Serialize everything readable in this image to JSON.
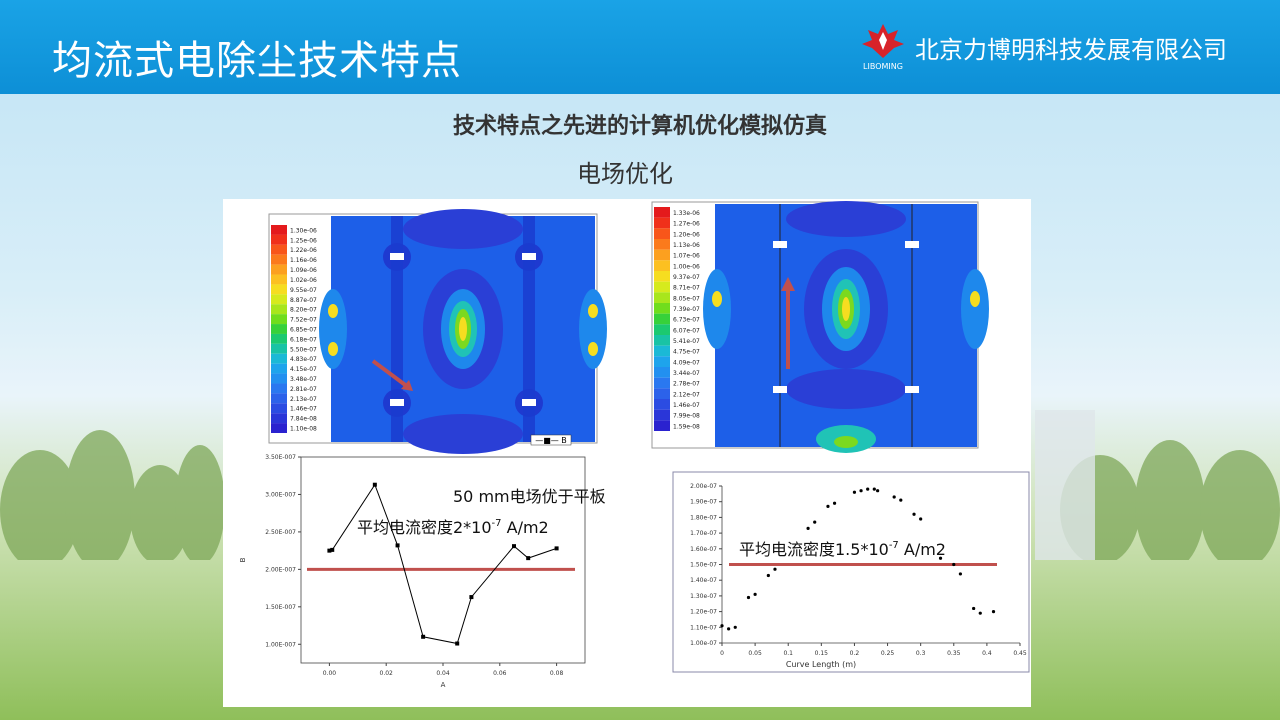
{
  "header": {
    "title": "均流式电除尘技术特点",
    "company": "北京力博明科技发展有限公司",
    "logo_text": "LIBOMING"
  },
  "content": {
    "subtitle": "技术特点之先进的计算机优化模拟仿真",
    "section": "电场优化"
  },
  "contour_left": {
    "legend": [
      "1.30e-06",
      "1.25e-06",
      "1.22e-06",
      "1.16e-06",
      "1.09e-06",
      "1.02e-06",
      "9.55e-07",
      "8.87e-07",
      "8.20e-07",
      "7.52e-07",
      "6.85e-07",
      "6.18e-07",
      "5.50e-07",
      "4.83e-07",
      "4.15e-07",
      "3.48e-07",
      "2.81e-07",
      "2.13e-07",
      "1.46e-07",
      "7.84e-08",
      "1.10e-08"
    ],
    "colors": [
      "#e41a1c",
      "#f0301a",
      "#f8561a",
      "#fb7a1c",
      "#fca01f",
      "#fcc021",
      "#f6dd20",
      "#d6ea1d",
      "#a8e61c",
      "#70dd1d",
      "#37d13a",
      "#1cc970",
      "#19c3a5",
      "#1bb9d6",
      "#1ea4ec",
      "#2290f0",
      "#2a78f0",
      "#2c62ea",
      "#2b4ce2",
      "#2a36d8",
      "#2a22cf"
    ],
    "legend_tag": "B"
  },
  "contour_right": {
    "legend": [
      "1.33e-06",
      "1.27e-06",
      "1.20e-06",
      "1.13e-06",
      "1.07e-06",
      "1.00e-06",
      "9.37e-07",
      "8.71e-07",
      "8.05e-07",
      "7.39e-07",
      "6.73e-07",
      "6.07e-07",
      "5.41e-07",
      "4.75e-07",
      "4.09e-07",
      "3.44e-07",
      "2.78e-07",
      "2.12e-07",
      "1.46e-07",
      "7.99e-08",
      "1.59e-08"
    ]
  },
  "chart_data": [
    {
      "type": "line",
      "x": [
        0.0,
        0.001,
        0.016,
        0.024,
        0.033,
        0.045,
        0.05,
        0.065,
        0.07,
        0.08
      ],
      "y": [
        2.25e-07,
        2.26e-07,
        3.13e-07,
        2.32e-07,
        1.1e-07,
        1.01e-07,
        1.63e-07,
        2.31e-07,
        2.15e-07,
        2.28e-07
      ],
      "xlabel": "A",
      "ylabel": "B",
      "xlim": [
        -0.01,
        0.09
      ],
      "ylim": [
        7.5e-08,
        3.5e-07
      ],
      "xticks": [
        "0.00",
        "0.02",
        "0.04",
        "0.06",
        "0.08"
      ],
      "yticks": [
        "1.00E-007",
        "1.50E-007",
        "2.00E-007",
        "2.50E-007",
        "3.00E-007",
        "3.50E-007"
      ],
      "annotation_1": "50 mm电场优于平板",
      "annotation_2": "平均电流密度2*10",
      "annotation_2_exp": "-7",
      "annotation_2_unit": " A/m2",
      "mean_line": 2e-07
    },
    {
      "type": "scatter",
      "x": [
        0.0,
        0.01,
        0.02,
        0.04,
        0.05,
        0.07,
        0.08,
        0.13,
        0.14,
        0.16,
        0.17,
        0.2,
        0.21,
        0.22,
        0.23,
        0.235,
        0.26,
        0.27,
        0.29,
        0.3,
        0.33,
        0.35,
        0.36,
        0.38,
        0.39,
        0.41
      ],
      "y": [
        1.11e-07,
        1.09e-07,
        1.1e-07,
        1.29e-07,
        1.31e-07,
        1.43e-07,
        1.47e-07,
        1.73e-07,
        1.77e-07,
        1.87e-07,
        1.89e-07,
        1.96e-07,
        1.97e-07,
        1.98e-07,
        1.98e-07,
        1.97e-07,
        1.93e-07,
        1.91e-07,
        1.82e-07,
        1.79e-07,
        1.54e-07,
        1.5e-07,
        1.44e-07,
        1.22e-07,
        1.19e-07,
        1.2e-07
      ],
      "xlabel": "Curve Length (m)",
      "xlim": [
        0,
        0.45
      ],
      "ylim": [
        1e-07,
        2e-07
      ],
      "xticks": [
        "0",
        "0.05",
        "0.1",
        "0.15",
        "0.2",
        "0.25",
        "0.3",
        "0.35",
        "0.4",
        "0.45"
      ],
      "yticks": [
        "1.00e-07",
        "1.10e-07",
        "1.20e-07",
        "1.30e-07",
        "1.40e-07",
        "1.50e-07",
        "1.60e-07",
        "1.70e-07",
        "1.80e-07",
        "1.90e-07",
        "2.00e-07"
      ],
      "annotation": "平均电流密度1.5*10",
      "annotation_exp": "-7",
      "annotation_unit": " A/m2",
      "mean_line": 1.5e-07
    }
  ]
}
